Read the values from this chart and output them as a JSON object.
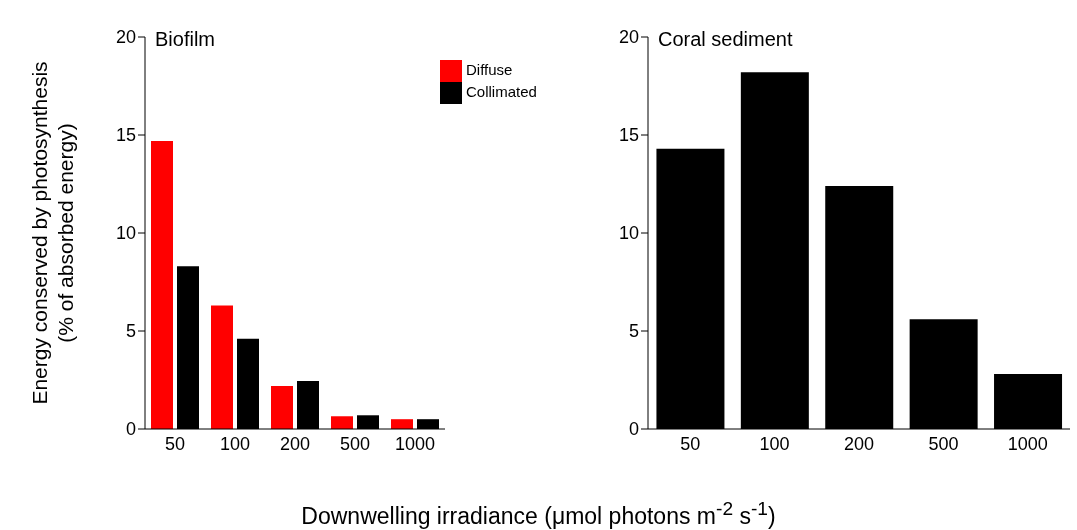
{
  "chart_data": [
    {
      "type": "bar",
      "title": "Biofilm",
      "ylabel": "Energy conserved by photosynthesis\n(% of absorbed energy)",
      "xlabel": "Downwelling irradiance (μmol photons m$^{-2}$ s$^{-1}$)",
      "categories": [
        "50",
        "100",
        "200",
        "500",
        "1000"
      ],
      "series": [
        {
          "name": "Diffuse",
          "color": "#ff0000",
          "values": [
            14.7,
            6.3,
            2.2,
            0.65,
            0.5
          ]
        },
        {
          "name": "Collimated",
          "color": "#000000",
          "values": [
            8.3,
            4.6,
            2.45,
            0.7,
            0.5
          ]
        }
      ],
      "ylim": [
        0,
        20
      ],
      "yticks": [
        0,
        5,
        10,
        15,
        20
      ],
      "legend": "top right"
    },
    {
      "type": "bar",
      "title": "Coral sediment",
      "categories": [
        "50",
        "100",
        "200",
        "500",
        "1000"
      ],
      "series": [
        {
          "color": "#000000",
          "values": [
            14.3,
            18.2,
            12.4,
            5.6,
            2.8
          ]
        }
      ],
      "ylim": [
        0,
        20
      ],
      "yticks": [
        0,
        5,
        10,
        15,
        20
      ]
    }
  ]
}
